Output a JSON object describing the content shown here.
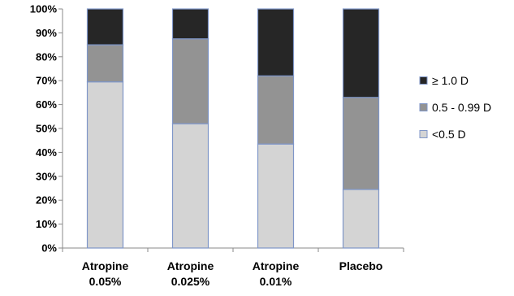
{
  "chart_data": {
    "type": "bar",
    "stacked": true,
    "categories": [
      [
        "Atropine",
        "0.05%"
      ],
      [
        "Atropine",
        "0.025%"
      ],
      [
        "Atropine",
        "0.01%"
      ],
      [
        "Placebo"
      ]
    ],
    "series": [
      {
        "name": "<0.5 D",
        "values": [
          69.5,
          52,
          43.5,
          24.5
        ],
        "color": "#d4d4d4"
      },
      {
        "name": "0.5 - 0.99 D",
        "values": [
          15.5,
          35.5,
          28.5,
          38.5
        ],
        "color": "#939393"
      },
      {
        "name": "≥ 1.0 D",
        "values": [
          15,
          12.5,
          28,
          37
        ],
        "color": "#262626"
      }
    ],
    "legend_order": [
      "≥ 1.0 D",
      "0.5 - 0.99 D",
      "<0.5 D"
    ],
    "y_ticks": [
      "0%",
      "10%",
      "20%",
      "30%",
      "40%",
      "50%",
      "60%",
      "70%",
      "80%",
      "90%",
      "100%"
    ],
    "ylim": [
      0,
      100
    ],
    "grid": false,
    "legend_position": "right",
    "title": "",
    "xlabel": "",
    "ylabel": "",
    "bar_border_color": "#7f96c8",
    "axis_color": "#8a8a8a"
  }
}
